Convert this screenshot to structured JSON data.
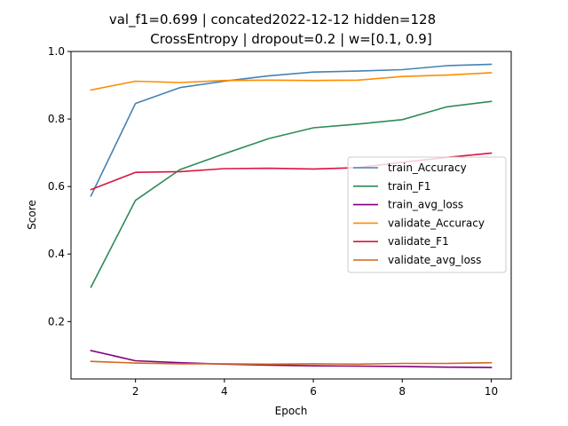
{
  "chart_data": {
    "type": "line",
    "title_lines": [
      "val_f1=0.699 | concated2022-12-12  hidden=128",
      "CrossEntropy | dropout=0.2 | w=[0.1, 0.9]"
    ],
    "xlabel": "Epoch",
    "ylabel": "Score",
    "xlim": [
      0.55,
      10.45
    ],
    "ylim": [
      0.03,
      1.0
    ],
    "xticks": [
      2,
      4,
      6,
      8,
      10
    ],
    "yticks": [
      0.2,
      0.4,
      0.6,
      0.8,
      1.0
    ],
    "grid": false,
    "legend_position": "center-right",
    "x": [
      1,
      2,
      3,
      4,
      5,
      6,
      7,
      8,
      9,
      10
    ],
    "series": [
      {
        "name": "train_Accuracy",
        "color": "#4682b4",
        "values": [
          0.572,
          0.846,
          0.893,
          0.912,
          0.928,
          0.939,
          0.942,
          0.946,
          0.958,
          0.962
        ]
      },
      {
        "name": "train_F1",
        "color": "#2e8b57",
        "values": [
          0.302,
          0.559,
          0.65,
          0.697,
          0.742,
          0.774,
          0.785,
          0.798,
          0.836,
          0.852
        ]
      },
      {
        "name": "train_avg_loss",
        "color": "#800080",
        "values": [
          0.114,
          0.084,
          0.078,
          0.074,
          0.071,
          0.069,
          0.068,
          0.067,
          0.065,
          0.064
        ]
      },
      {
        "name": "validate_Accuracy",
        "color": "#ff8c00",
        "values": [
          0.886,
          0.912,
          0.908,
          0.914,
          0.915,
          0.914,
          0.915,
          0.926,
          0.93,
          0.937
        ]
      },
      {
        "name": "validate_F1",
        "color": "#dc143c",
        "values": [
          0.591,
          0.642,
          0.644,
          0.653,
          0.654,
          0.652,
          0.656,
          0.672,
          0.686,
          0.699
        ]
      },
      {
        "name": "validate_avg_loss",
        "color": "#d2691e",
        "values": [
          0.082,
          0.077,
          0.075,
          0.075,
          0.074,
          0.075,
          0.074,
          0.076,
          0.076,
          0.078
        ]
      }
    ]
  }
}
